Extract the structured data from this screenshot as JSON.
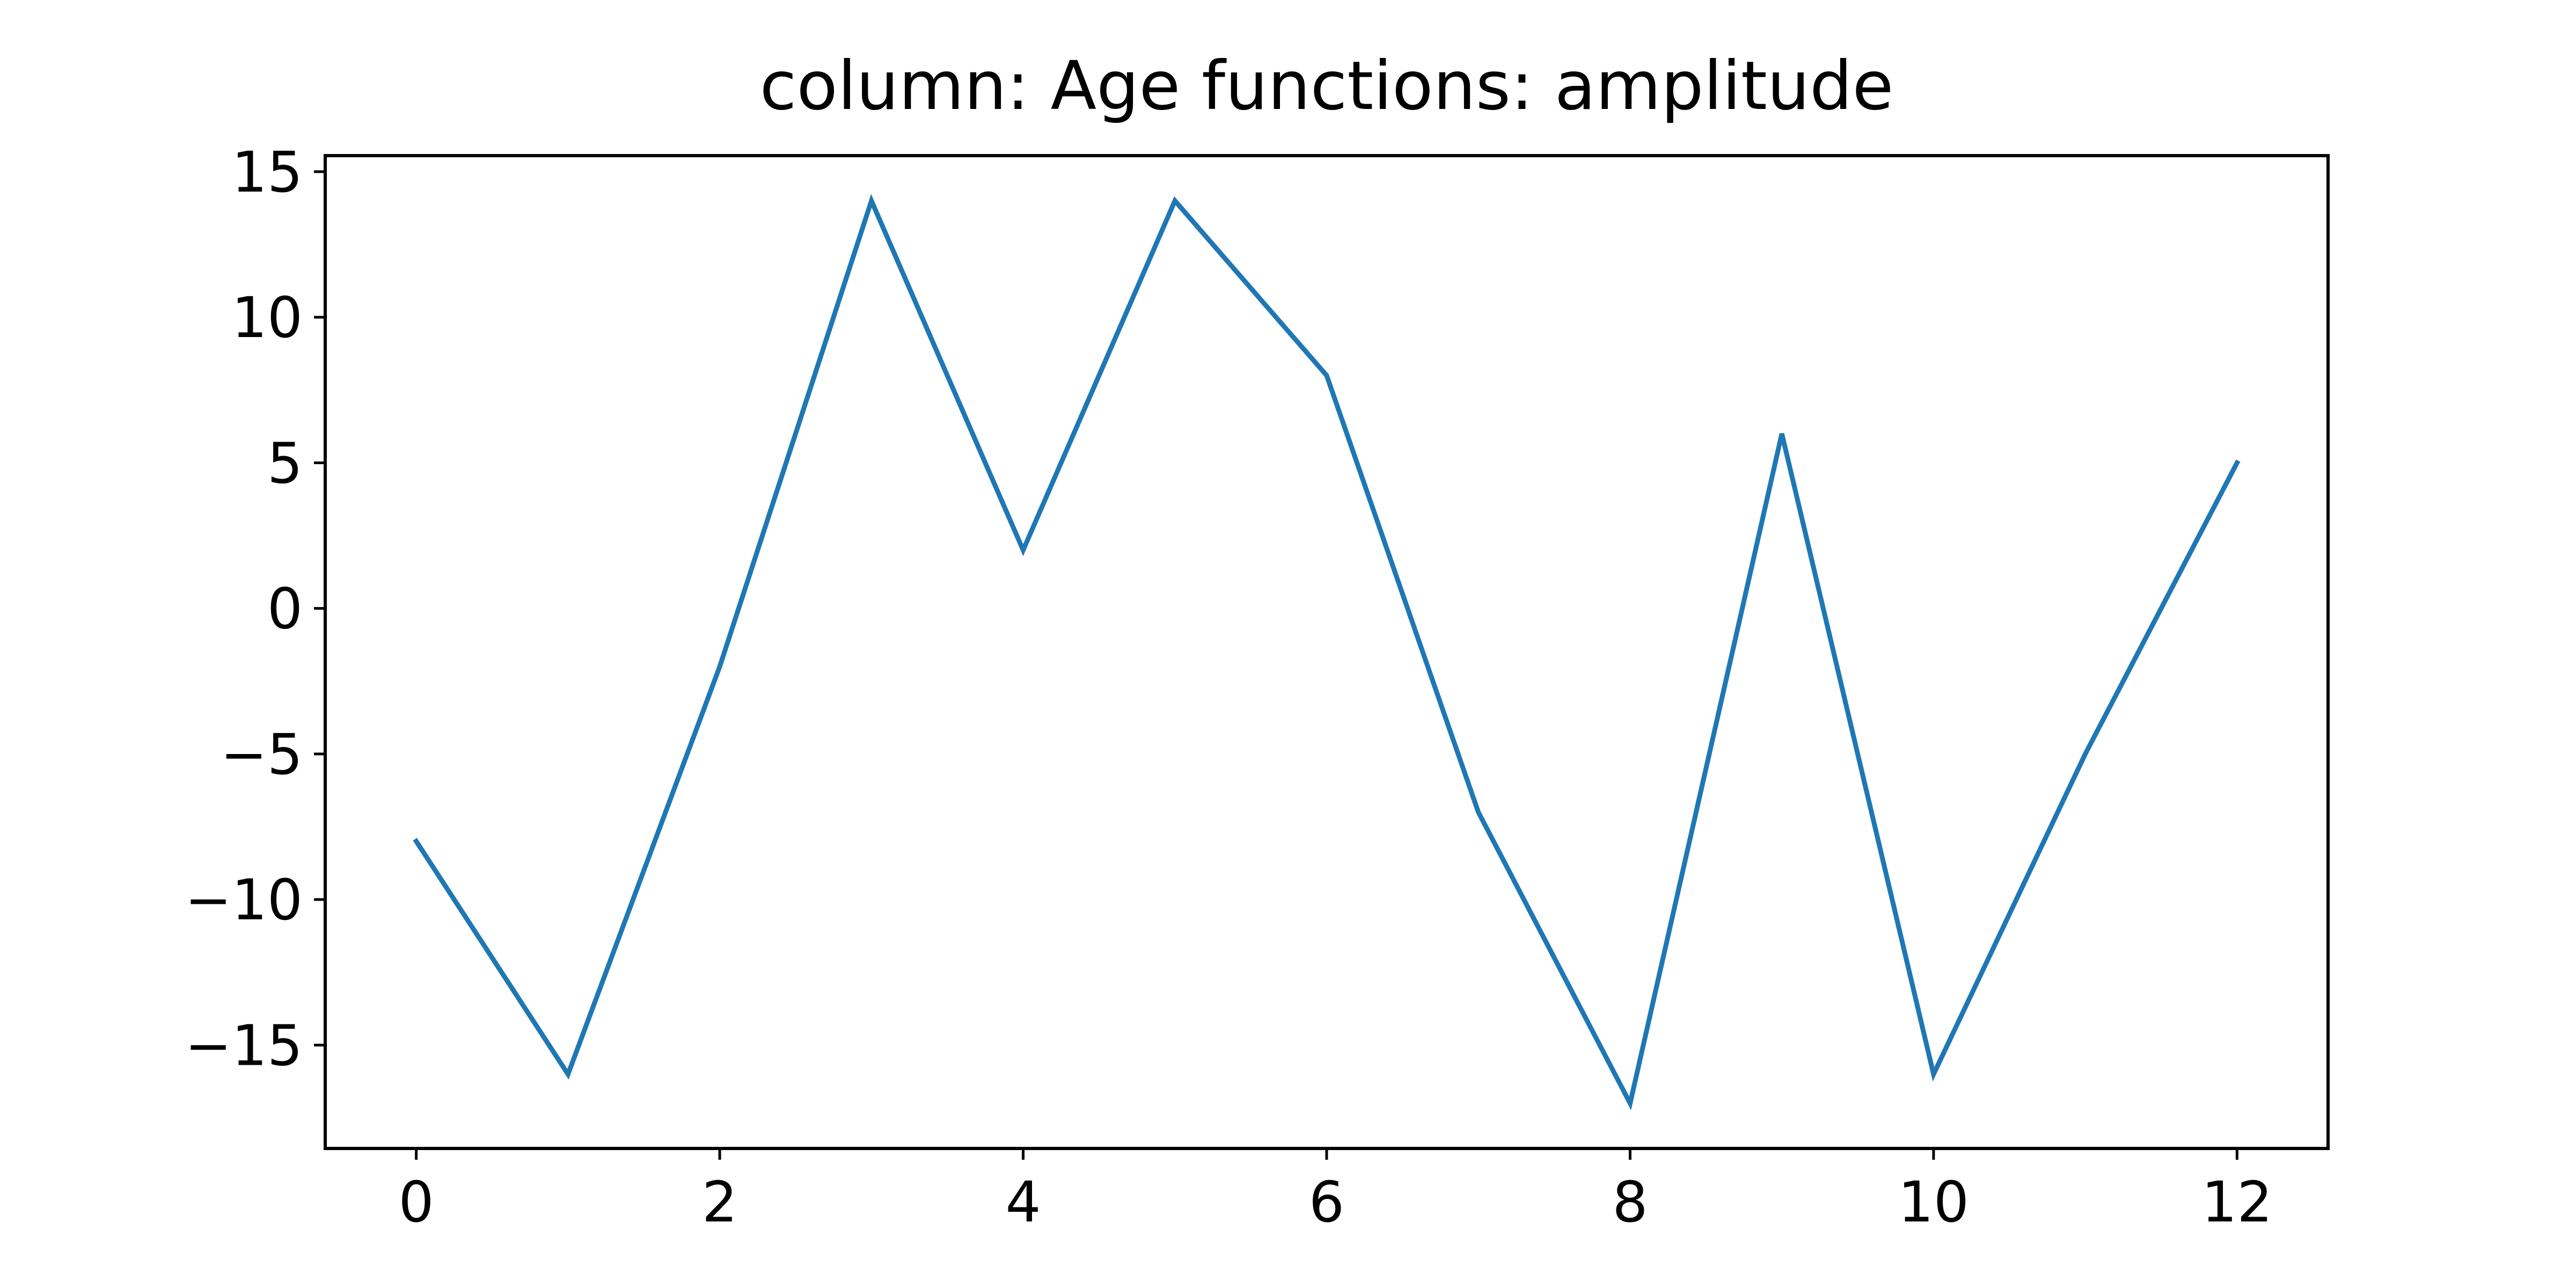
{
  "chart_data": {
    "type": "line",
    "title": "column: Age functions: amplitude",
    "xlabel": "",
    "ylabel": "",
    "x": [
      0,
      1,
      2,
      3,
      4,
      5,
      6,
      7,
      8,
      9,
      10,
      11,
      12
    ],
    "series": [
      {
        "values": [
          -8,
          -16,
          -2,
          14,
          2,
          14,
          8,
          -7,
          -17,
          6,
          -16,
          -5,
          5
        ],
        "color": "#1f77b4"
      }
    ],
    "xlim": [
      -0.6,
      12.6
    ],
    "ylim": [
      -18.55,
      15.55
    ],
    "xticks": [
      0,
      2,
      4,
      6,
      8,
      10,
      12
    ],
    "xtick_labels": [
      "0",
      "2",
      "4",
      "6",
      "8",
      "10",
      "12"
    ],
    "yticks": [
      15,
      10,
      5,
      0,
      -5,
      -10,
      -15
    ],
    "ytick_labels": [
      "15",
      "10",
      "5",
      "0",
      "−5",
      "−10",
      "−15"
    ],
    "grid": false,
    "legend": "none"
  }
}
